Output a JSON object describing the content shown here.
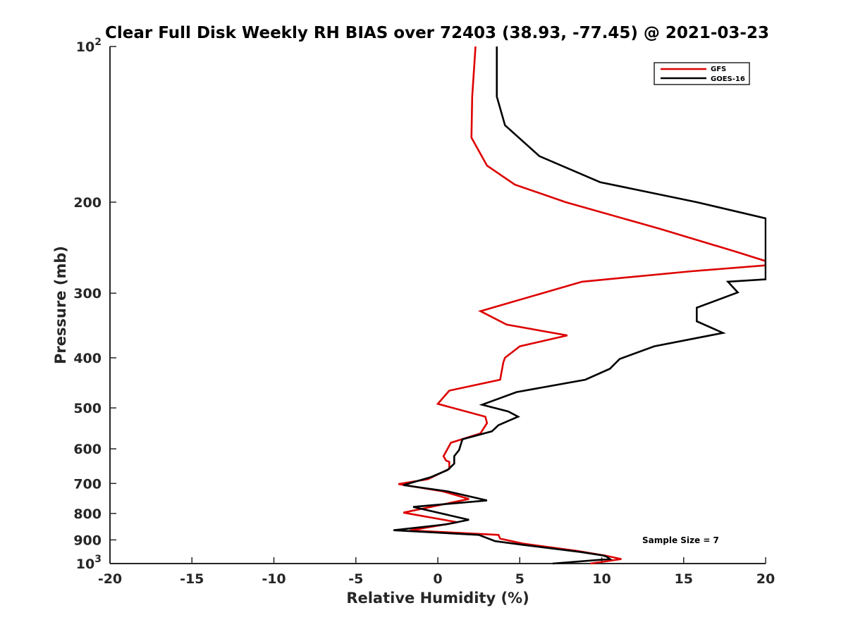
{
  "chart_data": {
    "type": "line",
    "title": "Clear Full Disk Weekly RH BIAS over 72403 (38.93, -77.45) @ 2021-03-23",
    "xlabel": "Relative Humidity (%)",
    "ylabel": "Pressure (mb)",
    "xlim": [
      -20,
      20
    ],
    "ylim": [
      100,
      1000
    ],
    "y_scale": "log",
    "y_reversed": true,
    "x_ticks": [
      "-20",
      "-15",
      "-10",
      "-5",
      "0",
      "5",
      "10",
      "15",
      "20"
    ],
    "y_ticks": [
      {
        "value": 100,
        "label": "10",
        "sup": "2"
      },
      {
        "value": 200,
        "label": "200",
        "sup": ""
      },
      {
        "value": 300,
        "label": "300",
        "sup": ""
      },
      {
        "value": 400,
        "label": "400",
        "sup": ""
      },
      {
        "value": 500,
        "label": "500",
        "sup": ""
      },
      {
        "value": 600,
        "label": "600",
        "sup": ""
      },
      {
        "value": 700,
        "label": "700",
        "sup": ""
      },
      {
        "value": 800,
        "label": "800",
        "sup": ""
      },
      {
        "value": 900,
        "label": "900",
        "sup": ""
      },
      {
        "value": 1000,
        "label": "10",
        "sup": "3"
      }
    ],
    "grid": false,
    "legend_position": "top-right",
    "annotation": "Sample Size = 7",
    "series": [
      {
        "name": "GFS",
        "color": "#dd0000",
        "points": [
          [
            2.3,
            100
          ],
          [
            2.1,
            125
          ],
          [
            2.05,
            150
          ],
          [
            3.0,
            170
          ],
          [
            4.7,
            185
          ],
          [
            7.8,
            200
          ],
          [
            13.5,
            225
          ],
          [
            18.3,
            250
          ],
          [
            20.0,
            260
          ],
          [
            20.0,
            265
          ],
          [
            15.5,
            272
          ],
          [
            8.8,
            285
          ],
          [
            2.6,
            325
          ],
          [
            4.2,
            345
          ],
          [
            7.9,
            362
          ],
          [
            5.0,
            380
          ],
          [
            4.1,
            400
          ],
          [
            4.0,
            408
          ],
          [
            3.8,
            441
          ],
          [
            0.7,
            463
          ],
          [
            0.0,
            491
          ],
          [
            2.9,
            520
          ],
          [
            3.0,
            535
          ],
          [
            2.6,
            560
          ],
          [
            0.8,
            584
          ],
          [
            0.35,
            620
          ],
          [
            0.5,
            632
          ],
          [
            0.7,
            636
          ],
          [
            0.7,
            656
          ],
          [
            -0.6,
            687
          ],
          [
            -2.4,
            702
          ],
          [
            0.3,
            725
          ],
          [
            1.9,
            750
          ],
          [
            -2.1,
            797
          ],
          [
            1.2,
            832
          ],
          [
            -1.7,
            863
          ],
          [
            3.7,
            880
          ],
          [
            3.8,
            895
          ],
          [
            5.2,
            915
          ],
          [
            8.5,
            945
          ],
          [
            10.2,
            965
          ],
          [
            11.2,
            980
          ],
          [
            9.3,
            1000
          ]
        ]
      },
      {
        "name": "GOES-16",
        "color": "#000000",
        "points": [
          [
            3.6,
            100
          ],
          [
            3.6,
            125
          ],
          [
            4.1,
            142
          ],
          [
            6.2,
            163
          ],
          [
            9.9,
            183
          ],
          [
            15.8,
            200
          ],
          [
            20.0,
            215
          ],
          [
            20.0,
            282
          ],
          [
            17.7,
            285
          ],
          [
            18.3,
            299
          ],
          [
            15.8,
            320
          ],
          [
            15.8,
            340
          ],
          [
            17.4,
            358
          ],
          [
            13.2,
            380
          ],
          [
            11.1,
            402
          ],
          [
            10.5,
            420
          ],
          [
            9.0,
            441
          ],
          [
            4.8,
            466
          ],
          [
            2.7,
            493
          ],
          [
            4.3,
            508
          ],
          [
            4.9,
            520
          ],
          [
            3.7,
            540
          ],
          [
            3.3,
            555
          ],
          [
            1.5,
            575
          ],
          [
            1.3,
            603
          ],
          [
            1.0,
            620
          ],
          [
            1.0,
            632
          ],
          [
            1.0,
            641
          ],
          [
            0.6,
            659
          ],
          [
            -0.4,
            680
          ],
          [
            -2.1,
            705
          ],
          [
            0.6,
            725
          ],
          [
            3.0,
            755
          ],
          [
            -1.5,
            777
          ],
          [
            1.9,
            823
          ],
          [
            0.5,
            840
          ],
          [
            -2.7,
            862
          ],
          [
            2.5,
            880
          ],
          [
            3.5,
            905
          ],
          [
            5.2,
            920
          ],
          [
            8.7,
            950
          ],
          [
            10.1,
            965
          ],
          [
            10.3,
            970
          ],
          [
            10.5,
            980
          ],
          [
            7.0,
            1000
          ]
        ]
      }
    ]
  }
}
